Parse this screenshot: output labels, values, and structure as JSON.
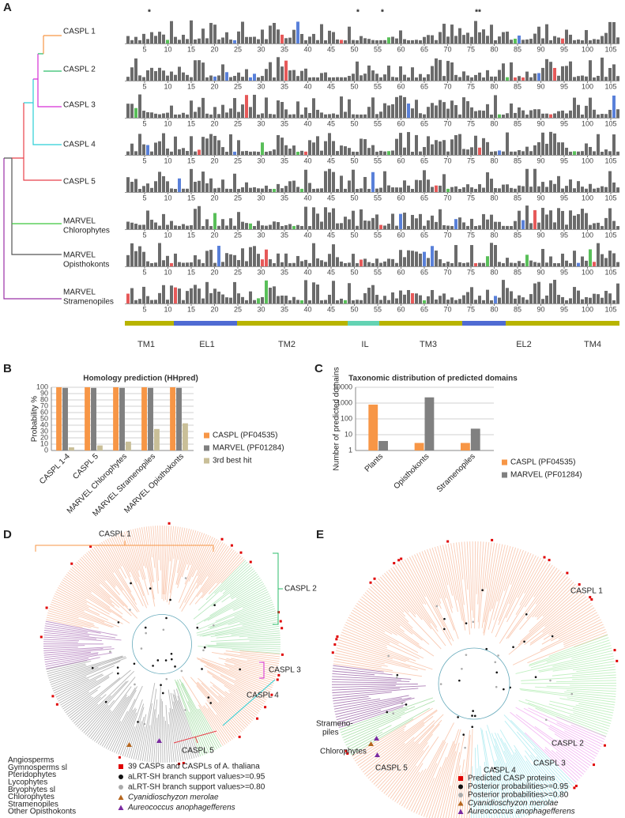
{
  "panel_a": {
    "label": "A",
    "asterisks": [
      {
        "text": "*",
        "color": "#3b5bdb"
      },
      {
        "text": "*",
        "color": "#e02020"
      },
      {
        "text": "*",
        "color": "#e02020"
      },
      {
        "text": "**",
        "color": "#2e9e2e"
      }
    ],
    "clades": [
      {
        "lines": [
          "CASPL 1"
        ],
        "color": "#f79646"
      },
      {
        "lines": [
          "CASPL 2"
        ],
        "color": "#2ebd6b"
      },
      {
        "lines": [
          "CASPL 3"
        ],
        "color": "#d62fd6"
      },
      {
        "lines": [
          "CASPL 4"
        ],
        "color": "#2bcfd6"
      },
      {
        "lines": [
          "CASPL 5"
        ],
        "color": "#e8414a"
      },
      {
        "lines": [
          "MARVEL",
          "Chlorophytes"
        ],
        "color": "#3cc83c"
      },
      {
        "lines": [
          "MARVEL",
          "Opisthokonts"
        ],
        "color": "#333333"
      },
      {
        "lines": [
          "MARVEL",
          "Stramenopiles"
        ],
        "color": "#9b30a8"
      }
    ],
    "positions": [
      5,
      10,
      15,
      20,
      25,
      30,
      35,
      40,
      45,
      50,
      55,
      60,
      65,
      70,
      75,
      80,
      85,
      90,
      95,
      100,
      105
    ],
    "domains": [
      "TM1",
      "EL1",
      "TM2",
      "IL",
      "TM3",
      "EL2",
      "TM4"
    ]
  },
  "chart_data": [
    {
      "type": "bar",
      "panel_label": "B",
      "title": "Homology prediction (HHpred)",
      "y_label": "Probability %",
      "categories": [
        "CASPL 1-4",
        "CASPL 5",
        "MARVEL Chlorophytes",
        "MARVEL Stramenopiles",
        "MARVEL Opisthokonts"
      ],
      "series": [
        {
          "name": "CASPL (PF04535)",
          "color": "#f79646",
          "values": [
            100,
            100,
            100,
            100,
            100
          ]
        },
        {
          "name": "MARVEL (PF01284)",
          "color": "#808080",
          "values": [
            99,
            99,
            99,
            99,
            99
          ]
        },
        {
          "name": "3rd best hit",
          "color": "#c9bf98",
          "values": [
            5,
            8,
            14,
            34,
            43
          ]
        }
      ],
      "ylim": [
        0,
        100
      ],
      "yticks": [
        0,
        10,
        20,
        30,
        40,
        50,
        60,
        70,
        80,
        90,
        100
      ],
      "grid": true,
      "log_scale": false,
      "legend": "right"
    },
    {
      "type": "bar",
      "panel_label": "C",
      "title": "Taxonomic distribution of predicted domains",
      "y_label": "Number of predicted domains",
      "categories": [
        "Plants",
        "Opisthokonts",
        "Stramenopiles"
      ],
      "series": [
        {
          "name": "CASPL (PF04535)",
          "color": "#f79646",
          "values": [
            800,
            3,
            3
          ]
        },
        {
          "name": "MARVEL (PF01284)",
          "color": "#808080",
          "values": [
            4,
            2300,
            24
          ]
        }
      ],
      "ylim": [
        1,
        10000
      ],
      "yticks": [
        1,
        10,
        100,
        1000,
        10000
      ],
      "grid": true,
      "log_scale": true,
      "legend": "right"
    }
  ],
  "panel_d": {
    "label": "D",
    "clades": [
      {
        "text": "CASPL 1",
        "color": "#f79646"
      },
      {
        "text": "CASPL 2",
        "color": "#2ebd6b"
      },
      {
        "text": "CASPL 3",
        "color": "#d62fd6"
      },
      {
        "text": "CASPL 4",
        "color": "#2bcfd6"
      },
      {
        "text": "CASPL 5",
        "color": "#e8414a"
      }
    ],
    "taxa": [
      {
        "text": "Angiosperms",
        "color": "#f79646"
      },
      {
        "text": "Gymnosperms sl",
        "color": "#2bb8d6"
      },
      {
        "text": "Pteridophytes",
        "color": "#d62fd6"
      },
      {
        "text": "Lycophytes",
        "color": "#c8102e"
      },
      {
        "text": "Bryophytes sl",
        "color": "#2e9e2e"
      },
      {
        "text": "Chlorophytes",
        "color": "#3cd23c"
      },
      {
        "text": "Stramenopiles",
        "color": "#9b30a8"
      },
      {
        "text": "Other Opisthokonts",
        "color": "#222222"
      }
    ],
    "legend": [
      {
        "text": "39 CASPs and CASPLs of A. thaliana",
        "marker": "square",
        "color": "#e00000",
        "italic": false
      },
      {
        "text": "aLRT-SH branch support values>=0.95",
        "marker": "circle",
        "color": "#111111",
        "italic": false
      },
      {
        "text": "aLRT-SH branch support values>=0.80",
        "marker": "circle",
        "color": "#aaaaaa",
        "italic": false
      },
      {
        "text": "Cyanidioschyzon merolae",
        "marker": "triangle",
        "color": "#b5651d",
        "italic": true
      },
      {
        "text": "Aureococcus anophagefferens",
        "marker": "triangle",
        "color": "#7a2aa0",
        "italic": true
      }
    ]
  },
  "panel_e": {
    "label": "E",
    "clades": [
      {
        "text": "CASPL 1",
        "color": "#f79646"
      },
      {
        "text": "CASPL 2",
        "color": "#2ebd6b"
      },
      {
        "text": "CASPL 3",
        "color": "#d62fd6"
      },
      {
        "text": "CASPL 4",
        "color": "#2bcfd6"
      },
      {
        "text": "CASPL 5",
        "color": "#e8414a"
      }
    ],
    "groups": [
      {
        "lines": [
          "Strameno-",
          "piles"
        ],
        "color": "#9b30a8"
      },
      {
        "lines": [
          "Chlorophytes"
        ],
        "color": "#3cc83c"
      }
    ],
    "legend": [
      {
        "text": "Predicted CASP proteins",
        "marker": "square",
        "color": "#e00000",
        "italic": false
      },
      {
        "text": "Posterior probabilities>=0.95",
        "marker": "circle",
        "color": "#111111",
        "italic": false
      },
      {
        "text": "Posterior probabilities>=0.80",
        "marker": "circle",
        "color": "#aaaaaa",
        "italic": false
      },
      {
        "text": "Cyanidioschyzon merolae",
        "marker": "triangle",
        "color": "#b5651d",
        "italic": true
      },
      {
        "text": "Aureococcus anophagefferens",
        "marker": "triangle",
        "color": "#7a2aa0",
        "italic": true
      }
    ]
  }
}
